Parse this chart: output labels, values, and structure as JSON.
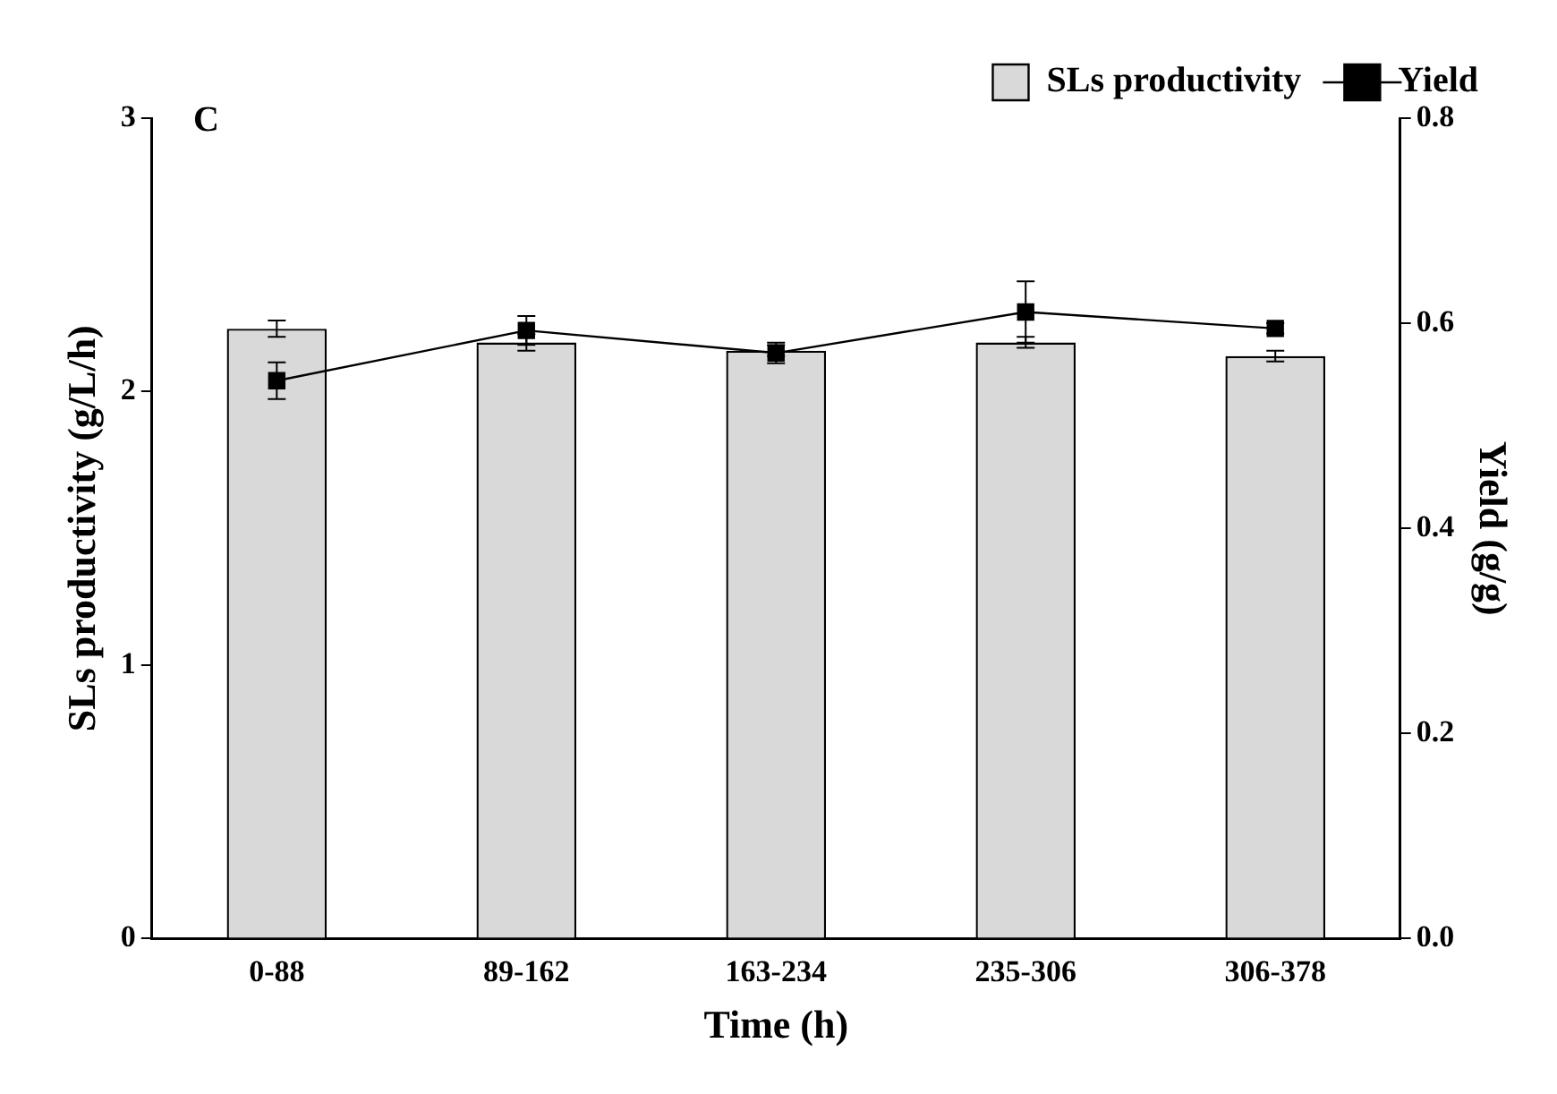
{
  "chart_data": {
    "type": "bar",
    "xlabel": "Time (h)",
    "ylabel": "SLs productivity (g/L/h)",
    "y2label": "Yield (g/g)",
    "annotations": [
      "C"
    ],
    "categories": [
      "0-88",
      "89-162",
      "163-234",
      "235-306",
      "306-378"
    ],
    "series": [
      {
        "name": "SLs productivity",
        "color": "#d9d9d9",
        "values": [
          2.23,
          2.18,
          2.15,
          2.18,
          2.13
        ],
        "errors": [
          0.03,
          0.03,
          0.02,
          0.02,
          0.02
        ]
      },
      {
        "name": "Yield",
        "type": "line",
        "axis": "y2",
        "color": "#000000",
        "values": [
          0.544,
          0.593,
          0.571,
          0.611,
          0.595
        ],
        "errors": [
          0.018,
          0.014,
          0.01,
          0.03,
          0.005
        ]
      }
    ],
    "ylim": [
      0,
      3
    ],
    "yticks": [
      0,
      1,
      2,
      3
    ],
    "y2lim": [
      0,
      0.8
    ],
    "y2ticks": [
      {
        "value": 0,
        "label": "0.0"
      },
      {
        "value": 0.2,
        "label": "0.2"
      },
      {
        "value": 0.4,
        "label": "0.4"
      },
      {
        "value": 0.6,
        "label": "0.6"
      },
      {
        "value": 0.8,
        "label": "0.8"
      }
    ],
    "grid": false,
    "legend": "top right",
    "marker": "square",
    "line_style": "solid"
  }
}
